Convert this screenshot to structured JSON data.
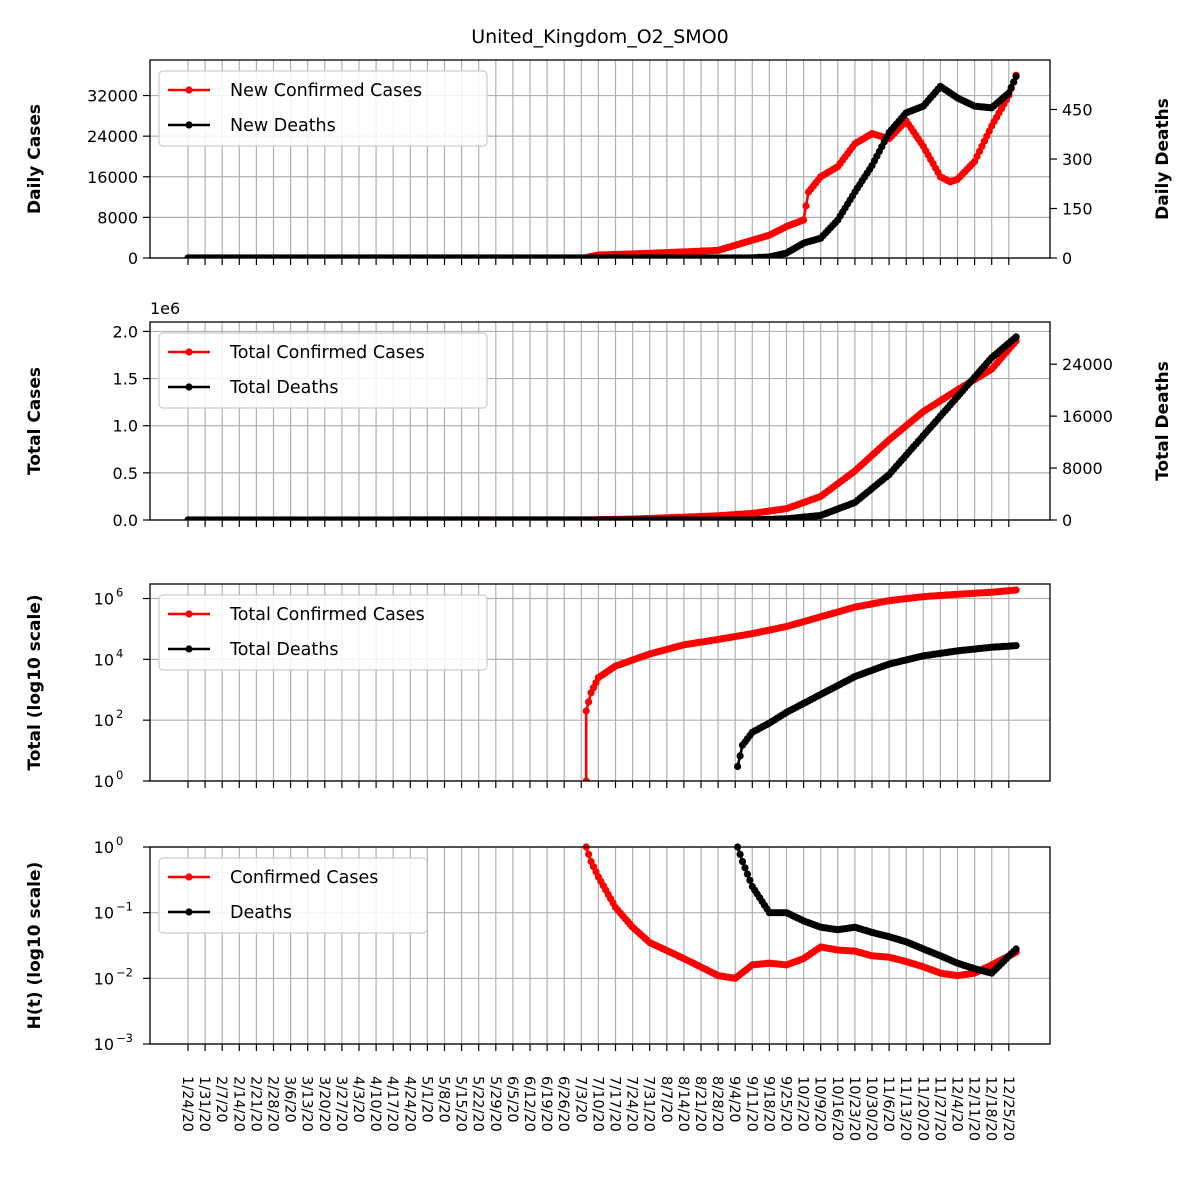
{
  "chart_data": {
    "title": "United_Kingdom_O2_SMO0",
    "colors": {
      "cases": "#ff0000",
      "deaths": "#000000",
      "grid": "#b0b0b0"
    },
    "x_axis": {
      "type": "date",
      "first_date": "1/24/20",
      "last_date": "12/28/20",
      "tick_labels": [
        "1/24/20",
        "1/31/20",
        "2/7/20",
        "2/14/20",
        "2/21/20",
        "2/28/20",
        "3/6/20",
        "3/13/20",
        "3/20/20",
        "3/27/20",
        "4/3/20",
        "4/10/20",
        "4/17/20",
        "4/24/20",
        "5/1/20",
        "5/8/20",
        "5/15/20",
        "5/22/20",
        "5/29/20",
        "6/5/20",
        "6/12/20",
        "6/19/20",
        "6/26/20",
        "7/3/20",
        "7/10/20",
        "7/17/20",
        "7/24/20",
        "7/31/20",
        "8/7/20",
        "8/14/20",
        "8/21/20",
        "8/28/20",
        "9/4/20",
        "9/11/20",
        "9/18/20",
        "9/25/20",
        "10/2/20",
        "10/9/20",
        "10/16/20",
        "10/23/20",
        "10/30/20",
        "11/6/20",
        "11/13/20",
        "11/20/20",
        "11/27/20",
        "12/4/20",
        "12/11/20",
        "12/18/20",
        "12/25/20"
      ]
    },
    "panels": [
      {
        "type": "line",
        "ylabel": "Daily Cases",
        "ylim": [
          0,
          39000
        ],
        "yticks": [
          0,
          8000,
          16000,
          24000,
          32000
        ],
        "y2label": "Daily Deaths",
        "y2lim": [
          0,
          600
        ],
        "y2ticks": [
          0,
          150,
          300,
          450
        ],
        "legend_position": "top-left",
        "grid": true,
        "series": [
          {
            "name": "New Confirmed Cases",
            "axis": "left",
            "points": [
              [
                "1/24/20",
                0
              ],
              [
                "7/5/20",
                0
              ],
              [
                "7/6/20",
                200
              ],
              [
                "7/10/20",
                600
              ],
              [
                "7/24/20",
                800
              ],
              [
                "8/14/20",
                1200
              ],
              [
                "8/28/20",
                1500
              ],
              [
                "9/4/20",
                2500
              ],
              [
                "9/11/20",
                3500
              ],
              [
                "9/18/20",
                4500
              ],
              [
                "9/25/20",
                6200
              ],
              [
                "10/2/20",
                7500
              ],
              [
                "10/4/20",
                13000
              ],
              [
                "10/9/20",
                16000
              ],
              [
                "10/16/20",
                18000
              ],
              [
                "10/23/20",
                22500
              ],
              [
                "10/30/20",
                24500
              ],
              [
                "11/6/20",
                23500
              ],
              [
                "11/13/20",
                27000
              ],
              [
                "11/20/20",
                22000
              ],
              [
                "11/27/20",
                16000
              ],
              [
                "12/1/20",
                15000
              ],
              [
                "12/4/20",
                15500
              ],
              [
                "12/11/20",
                19000
              ],
              [
                "12/18/20",
                26000
              ],
              [
                "12/25/20",
                32000
              ],
              [
                "12/28/20",
                36000
              ]
            ]
          },
          {
            "name": "New Deaths",
            "axis": "right",
            "points": [
              [
                "1/24/20",
                0
              ],
              [
                "9/9/20",
                0
              ],
              [
                "9/18/20",
                3
              ],
              [
                "9/25/20",
                15
              ],
              [
                "10/2/20",
                45
              ],
              [
                "10/9/20",
                60
              ],
              [
                "10/16/20",
                115
              ],
              [
                "10/23/20",
                200
              ],
              [
                "10/30/20",
                280
              ],
              [
                "11/6/20",
                380
              ],
              [
                "11/13/20",
                440
              ],
              [
                "11/20/20",
                460
              ],
              [
                "11/27/20",
                520
              ],
              [
                "12/4/20",
                485
              ],
              [
                "12/11/20",
                460
              ],
              [
                "12/18/20",
                455
              ],
              [
                "12/25/20",
                500
              ],
              [
                "12/28/20",
                550
              ]
            ]
          }
        ]
      },
      {
        "type": "line",
        "ylabel": "Total Cases",
        "y_offset_label": "1e6",
        "ylim": [
          0,
          2.1
        ],
        "yticks": [
          0.0,
          0.5,
          1.0,
          1.5,
          2.0
        ],
        "ytick_labels": [
          "0.0",
          "0.5",
          "1.0",
          "1.5",
          "2.0"
        ],
        "y2label": "Total Deaths",
        "y2lim": [
          0,
          30500
        ],
        "y2ticks": [
          0,
          8000,
          16000,
          24000
        ],
        "legend_position": "top-left",
        "grid": true,
        "series": [
          {
            "name": "Total Confirmed Cases",
            "axis": "left",
            "points": [
              [
                "1/24/20",
                0
              ],
              [
                "7/5/20",
                0.001
              ],
              [
                "7/24/20",
                0.01
              ],
              [
                "8/14/20",
                0.03
              ],
              [
                "8/28/20",
                0.045
              ],
              [
                "9/11/20",
                0.07
              ],
              [
                "9/25/20",
                0.12
              ],
              [
                "10/9/20",
                0.25
              ],
              [
                "10/23/20",
                0.52
              ],
              [
                "11/6/20",
                0.85
              ],
              [
                "11/20/20",
                1.15
              ],
              [
                "12/4/20",
                1.38
              ],
              [
                "12/18/20",
                1.6
              ],
              [
                "12/28/20",
                1.9
              ]
            ]
          },
          {
            "name": "Total Deaths",
            "axis": "right",
            "points": [
              [
                "1/24/20",
                0
              ],
              [
                "9/9/20",
                0
              ],
              [
                "9/25/20",
                180
              ],
              [
                "10/9/20",
                700
              ],
              [
                "10/23/20",
                2700
              ],
              [
                "11/6/20",
                7000
              ],
              [
                "11/20/20",
                13000
              ],
              [
                "12/4/20",
                19000
              ],
              [
                "12/18/20",
                25000
              ],
              [
                "12/28/20",
                28200
              ]
            ]
          }
        ]
      },
      {
        "type": "line",
        "ylabel": "Total (log10 scale)",
        "y_scale": "log10",
        "ylim": [
          1,
          3000000
        ],
        "yticks": [
          1,
          100,
          10000,
          1000000
        ],
        "ytick_labels": [
          "10",
          "10",
          "10",
          "10"
        ],
        "ytick_exponents": [
          "0",
          "2",
          "4",
          "6"
        ],
        "legend_position": "top-left",
        "grid": true,
        "series": [
          {
            "name": "Total Confirmed Cases",
            "points": [
              [
                "7/5/20",
                1
              ],
              [
                "7/5/20",
                200
              ],
              [
                "7/7/20",
                800
              ],
              [
                "7/10/20",
                2500
              ],
              [
                "7/17/20",
                6000
              ],
              [
                "7/31/20",
                15000
              ],
              [
                "8/14/20",
                30000
              ],
              [
                "8/28/20",
                45000
              ],
              [
                "9/11/20",
                70000
              ],
              [
                "9/25/20",
                120000
              ],
              [
                "10/9/20",
                250000
              ],
              [
                "10/23/20",
                520000
              ],
              [
                "11/6/20",
                850000
              ],
              [
                "11/20/20",
                1150000
              ],
              [
                "12/4/20",
                1380000
              ],
              [
                "12/18/20",
                1600000
              ],
              [
                "12/28/20",
                1900000
              ]
            ]
          },
          {
            "name": "Total Deaths",
            "points": [
              [
                "9/5/20",
                3
              ],
              [
                "9/7/20",
                15
              ],
              [
                "9/11/20",
                40
              ],
              [
                "9/18/20",
                80
              ],
              [
                "9/25/20",
                180
              ],
              [
                "10/9/20",
                700
              ],
              [
                "10/23/20",
                2700
              ],
              [
                "11/6/20",
                7000
              ],
              [
                "11/20/20",
                13000
              ],
              [
                "12/4/20",
                19000
              ],
              [
                "12/18/20",
                25000
              ],
              [
                "12/28/20",
                28200
              ]
            ]
          }
        ]
      },
      {
        "type": "line",
        "ylabel": "H(t) (log10 scale)",
        "y_scale": "log10",
        "ylim": [
          0.001,
          1
        ],
        "yticks": [
          0.001,
          0.01,
          0.1,
          1
        ],
        "ytick_labels": [
          "10",
          "10",
          "10",
          "10"
        ],
        "ytick_exponents": [
          "−3",
          "−2",
          "−1",
          "0"
        ],
        "legend_position": "top-left",
        "grid": true,
        "series": [
          {
            "name": "Confirmed Cases",
            "points": [
              [
                "7/5/20",
                1.0
              ],
              [
                "7/7/20",
                0.6
              ],
              [
                "7/10/20",
                0.35
              ],
              [
                "7/17/20",
                0.12
              ],
              [
                "7/24/20",
                0.06
              ],
              [
                "7/31/20",
                0.035
              ],
              [
                "8/14/20",
                0.02
              ],
              [
                "8/28/20",
                0.011
              ],
              [
                "9/4/20",
                0.01
              ],
              [
                "9/11/20",
                0.016
              ],
              [
                "9/18/20",
                0.017
              ],
              [
                "9/25/20",
                0.016
              ],
              [
                "10/2/20",
                0.02
              ],
              [
                "10/9/20",
                0.03
              ],
              [
                "10/16/20",
                0.027
              ],
              [
                "10/23/20",
                0.026
              ],
              [
                "10/30/20",
                0.022
              ],
              [
                "11/6/20",
                0.021
              ],
              [
                "11/13/20",
                0.018
              ],
              [
                "11/20/20",
                0.015
              ],
              [
                "11/27/20",
                0.012
              ],
              [
                "12/4/20",
                0.011
              ],
              [
                "12/11/20",
                0.012
              ],
              [
                "12/18/20",
                0.016
              ],
              [
                "12/28/20",
                0.025
              ]
            ]
          },
          {
            "name": "Deaths",
            "points": [
              [
                "9/5/20",
                1.0
              ],
              [
                "9/7/20",
                0.6
              ],
              [
                "9/11/20",
                0.25
              ],
              [
                "9/18/20",
                0.1
              ],
              [
                "9/25/20",
                0.1
              ],
              [
                "10/2/20",
                0.075
              ],
              [
                "10/9/20",
                0.06
              ],
              [
                "10/16/20",
                0.055
              ],
              [
                "10/23/20",
                0.06
              ],
              [
                "10/30/20",
                0.05
              ],
              [
                "11/6/20",
                0.043
              ],
              [
                "11/13/20",
                0.036
              ],
              [
                "11/20/20",
                0.028
              ],
              [
                "11/27/20",
                0.022
              ],
              [
                "12/4/20",
                0.017
              ],
              [
                "12/11/20",
                0.014
              ],
              [
                "12/18/20",
                0.012
              ],
              [
                "12/28/20",
                0.028
              ]
            ]
          }
        ]
      }
    ]
  }
}
